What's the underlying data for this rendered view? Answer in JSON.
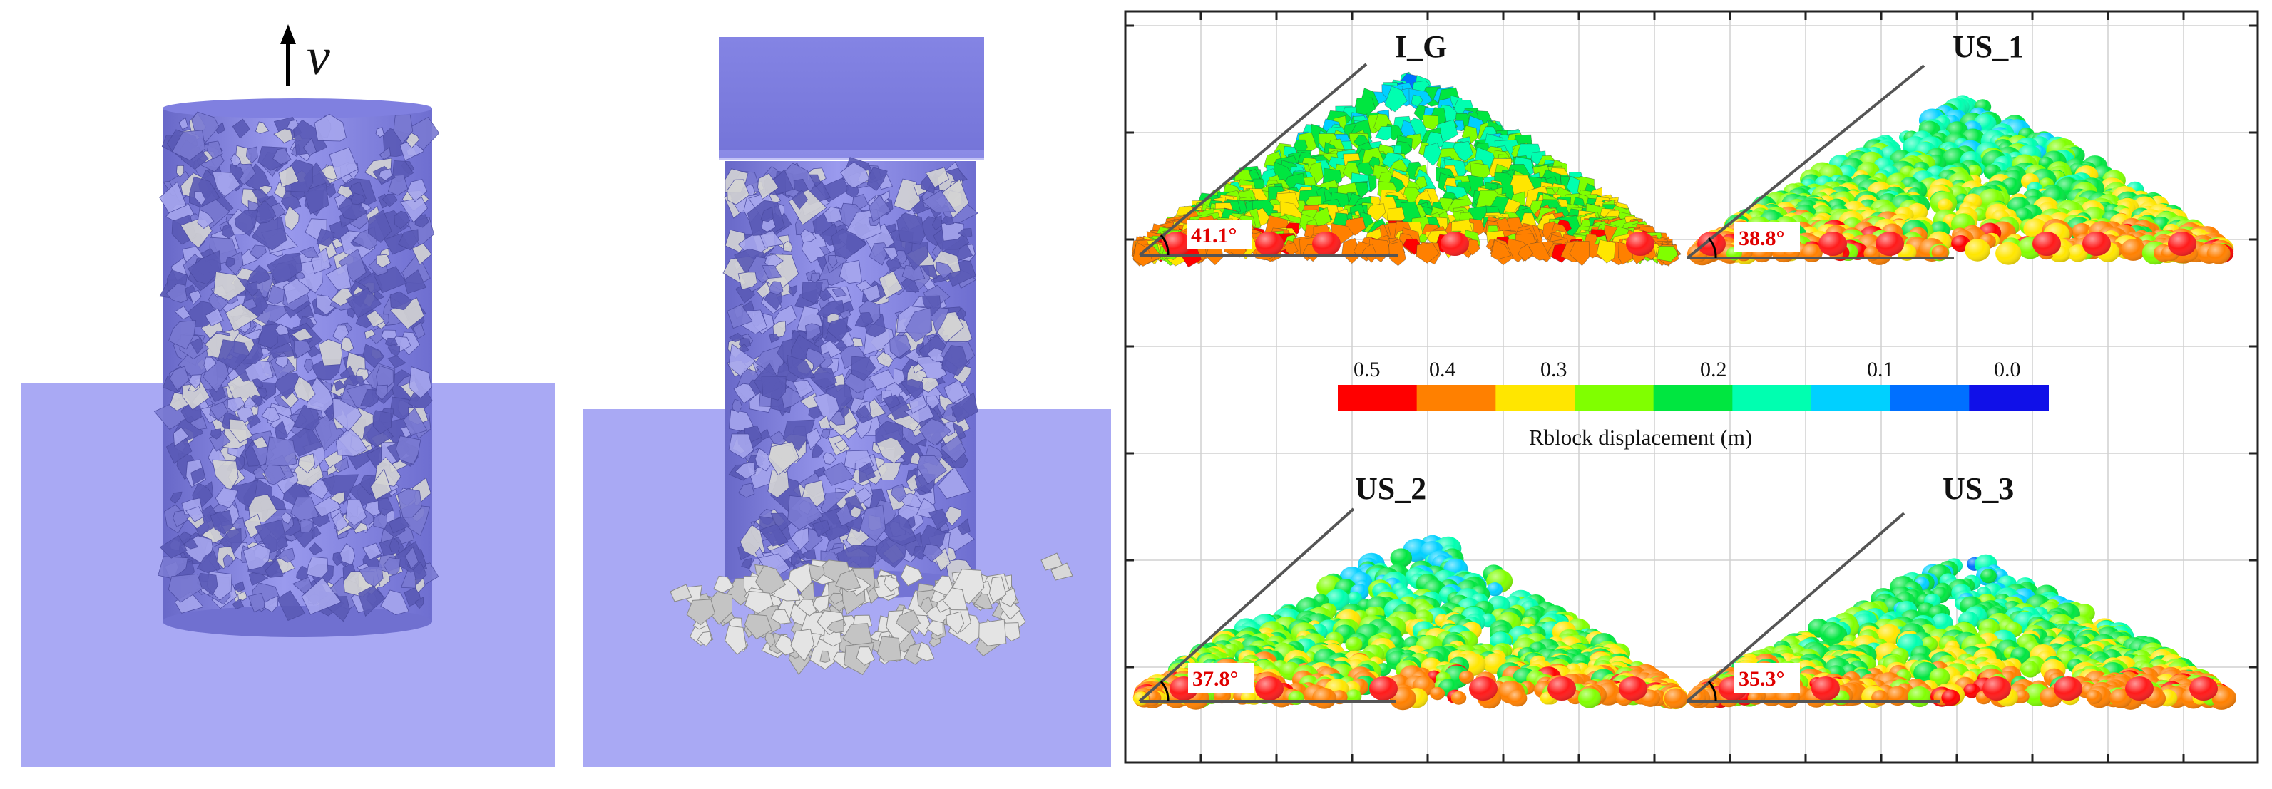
{
  "left_figure": {
    "velocity_symbol": "v",
    "colors": {
      "cylinder": "#8f8fe6",
      "cylinder_top": "#7d7de0",
      "ground": "#a9a9f4",
      "rock_light": "#d6d6d6",
      "rock_shadow": "#5b5bb8"
    },
    "icons": [
      "up-arrow-icon"
    ]
  },
  "right_figure": {
    "panels": [
      {
        "label": "I_G",
        "angle": "41.1°"
      },
      {
        "label": "US_1",
        "angle": "38.8°"
      },
      {
        "label": "US_2",
        "angle": "37.8°"
      },
      {
        "label": "US_3",
        "angle": "35.3°"
      }
    ],
    "colorbar": {
      "title": "Rblock displacement (m)",
      "tick_labels": [
        "0.5",
        "0.4",
        "0.3",
        "0.2",
        "0.1",
        "0.0"
      ],
      "colors": [
        "#ff0000",
        "#ff8000",
        "#ffe600",
        "#80ff00",
        "#00e640",
        "#00ffb0",
        "#00d0ff",
        "#0070ff",
        "#1010e8"
      ]
    },
    "frame_color": "#222222",
    "grid_color": "#cccccc",
    "slope_line_color": "#555555",
    "angle_text_color": "#e00000"
  }
}
